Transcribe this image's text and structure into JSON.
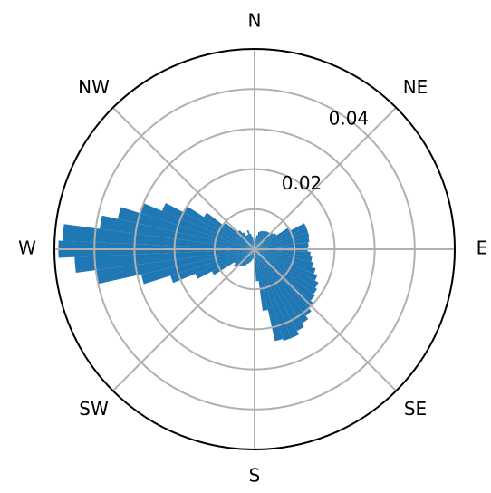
{
  "chart_data": {
    "type": "bar",
    "subtype": "polar-wind-rose",
    "rmax": 0.05,
    "radial_ticks": [
      0.02,
      0.04,
      ""
    ],
    "radial_tick_labels": [
      "0.02",
      "0.04"
    ],
    "direction_labels": [
      "N",
      "NE",
      "E",
      "SE",
      "S",
      "SW",
      "W",
      "NW"
    ],
    "direction_angles": [
      0,
      45,
      90,
      135,
      180,
      225,
      270,
      315
    ],
    "bar_color": "#1f77b4",
    "bar_width_deg": 5,
    "directions_deg": [
      0,
      5,
      10,
      15,
      20,
      25,
      30,
      35,
      40,
      45,
      50,
      55,
      60,
      65,
      70,
      75,
      80,
      85,
      90,
      95,
      100,
      105,
      110,
      115,
      120,
      125,
      130,
      135,
      140,
      145,
      150,
      155,
      160,
      165,
      170,
      175,
      180,
      185,
      190,
      195,
      200,
      205,
      210,
      215,
      220,
      225,
      230,
      235,
      240,
      245,
      250,
      255,
      260,
      265,
      270,
      275,
      280,
      285,
      290,
      295,
      300,
      305,
      310,
      315,
      320,
      325,
      330,
      335,
      340,
      345,
      350,
      355
    ],
    "frequencies": [
      0.0015,
      0.0025,
      0.0035,
      0.0045,
      0.0048,
      0.005,
      0.0052,
      0.0054,
      0.0055,
      0.0056,
      0.006,
      0.0065,
      0.01,
      0.014,
      0.014,
      0.014,
      0.0138,
      0.0135,
      0.0133,
      0.014,
      0.0145,
      0.015,
      0.016,
      0.017,
      0.018,
      0.0185,
      0.019,
      0.02,
      0.021,
      0.022,
      0.023,
      0.024,
      0.024,
      0.0235,
      0.0155,
      0.008,
      0.001,
      0.001,
      0.0025,
      0.003,
      0.0035,
      0.004,
      0.0045,
      0.005,
      0.0055,
      0.006,
      0.0065,
      0.006,
      0.012,
      0.016,
      0.022,
      0.029,
      0.04,
      0.045,
      0.049,
      0.048,
      0.039,
      0.035,
      0.03,
      0.025,
      0.02,
      0.015,
      0.01,
      0.007,
      0.006,
      0.005,
      0.004,
      0.004,
      0.005,
      0.004,
      0.003,
      0.002
    ]
  }
}
